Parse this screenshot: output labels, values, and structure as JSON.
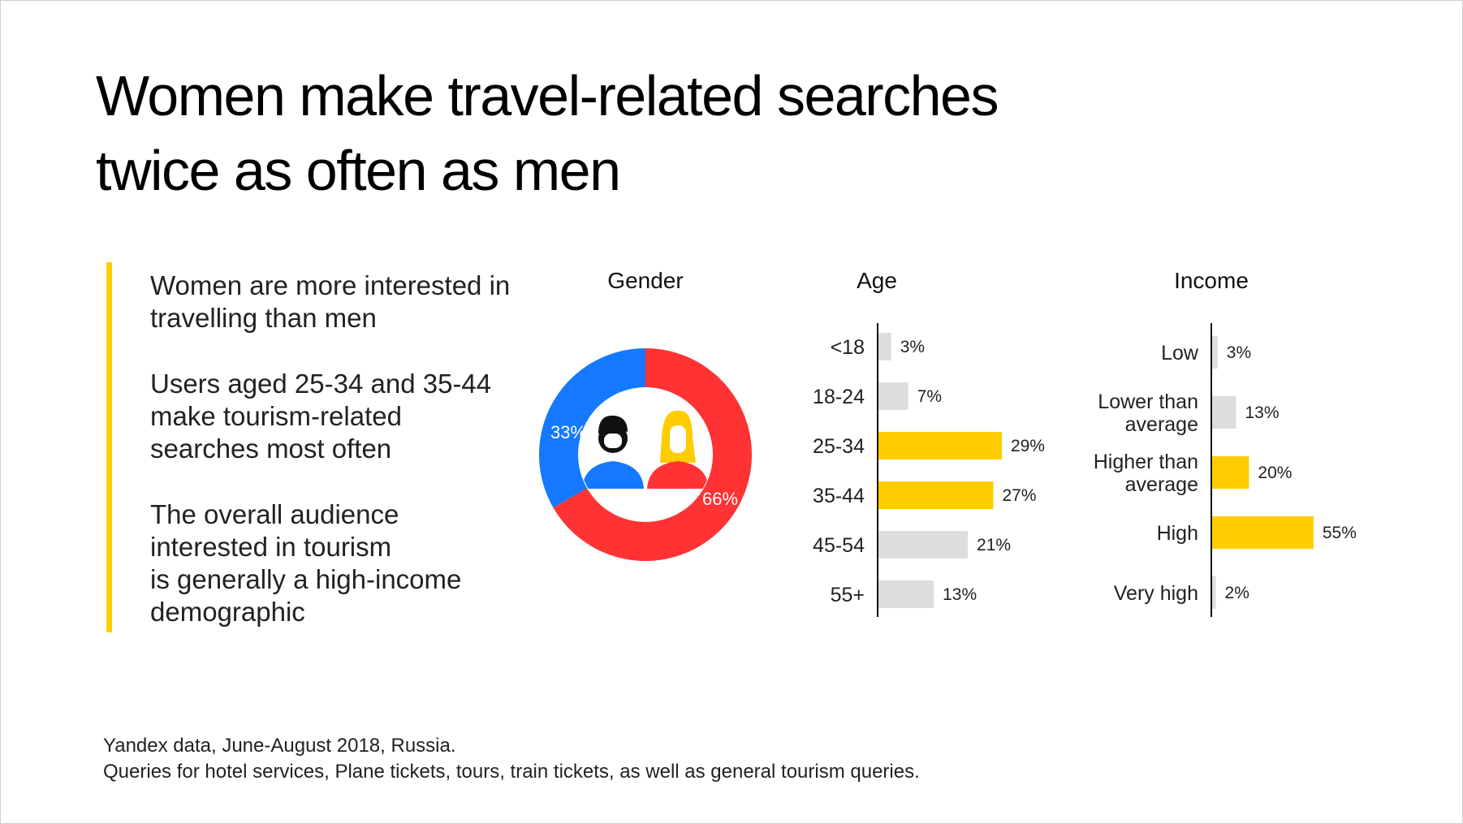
{
  "title_lines": [
    "Women make travel-related searches",
    "twice as often as men"
  ],
  "notes": [
    [
      "Women are more interested in",
      "travelling than men"
    ],
    [
      "Users aged 25-34 and 35-44",
      "make tourism-related",
      "searches most often"
    ],
    [
      "The overall audience",
      "interested in tourism",
      "is generally a high-income",
      "demographic"
    ]
  ],
  "footnote": [
    "Yandex data, June-August 2018, Russia.",
    "Queries for hotel services, Plane tickets, tours, train tickets, as well as general tourism queries."
  ],
  "colors": {
    "men": "#1479ff",
    "women": "#ff3333",
    "highlight": "#ffcc00",
    "normal": "#dddddd",
    "accent_bar": "#ffcc00"
  },
  "icons": [
    "man-icon",
    "woman-icon"
  ],
  "chart_data": [
    {
      "type": "pie",
      "title": "Gender",
      "series": [
        {
          "name": "Men",
          "value": 33,
          "label": "33%"
        },
        {
          "name": "Women",
          "value": 66,
          "label": "66%"
        }
      ]
    },
    {
      "type": "bar",
      "orientation": "horizontal",
      "title": "Age",
      "categories": [
        "<18",
        "18-24",
        "25-34",
        "35-44",
        "45-54",
        "55+"
      ],
      "values": [
        3,
        7,
        29,
        27,
        21,
        13
      ],
      "labels": [
        "3%",
        "7%",
        "29%",
        "27%",
        "21%",
        "13%"
      ],
      "highlighted": [
        "25-34",
        "35-44"
      ]
    },
    {
      "type": "bar",
      "orientation": "horizontal",
      "title": "Income",
      "categories": [
        [
          "Low"
        ],
        [
          "Lower than",
          "average"
        ],
        [
          "Higher than",
          "average"
        ],
        [
          "High"
        ],
        [
          "Very high"
        ]
      ],
      "values": [
        3,
        13,
        20,
        55,
        2
      ],
      "labels": [
        "3%",
        "13%",
        "20%",
        "55%",
        "2%"
      ],
      "highlighted": [
        2,
        3
      ]
    }
  ]
}
